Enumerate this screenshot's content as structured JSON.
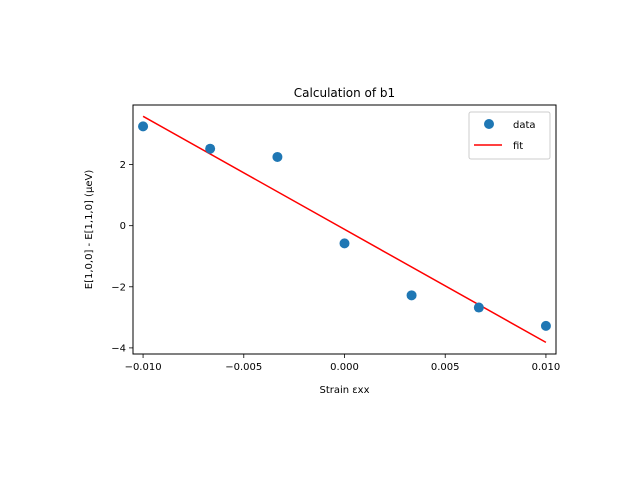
{
  "chart_data": {
    "type": "scatter",
    "title": "Calculation of b1",
    "xlabel": "Strain εxx",
    "ylabel": "E[1,0,0] - E[1,1,0] (μeV)",
    "xlim": [
      -0.0105,
      0.0105
    ],
    "ylim": [
      -4.2,
      3.95
    ],
    "xticks": [
      -0.01,
      -0.005,
      0.0,
      0.005,
      0.01
    ],
    "xtick_labels": [
      "−0.010",
      "−0.005",
      "0.000",
      "0.005",
      "0.010"
    ],
    "yticks": [
      -4,
      -2,
      0,
      2
    ],
    "ytick_labels": [
      "−4",
      "−2",
      "0",
      "2"
    ],
    "grid": false,
    "legend_position": "top-right",
    "series": [
      {
        "name": "data",
        "kind": "scatter",
        "color": "#1f77b4",
        "x": [
          -0.01,
          -0.00667,
          -0.00333,
          0.0,
          0.00333,
          0.00667,
          0.01
        ],
        "y": [
          3.25,
          2.52,
          2.25,
          -0.58,
          -2.28,
          -2.68,
          -3.28
        ]
      },
      {
        "name": "fit",
        "kind": "line",
        "color": "#ff0000",
        "x": [
          -0.01,
          0.01
        ],
        "y": [
          3.58,
          -3.82
        ]
      }
    ]
  }
}
